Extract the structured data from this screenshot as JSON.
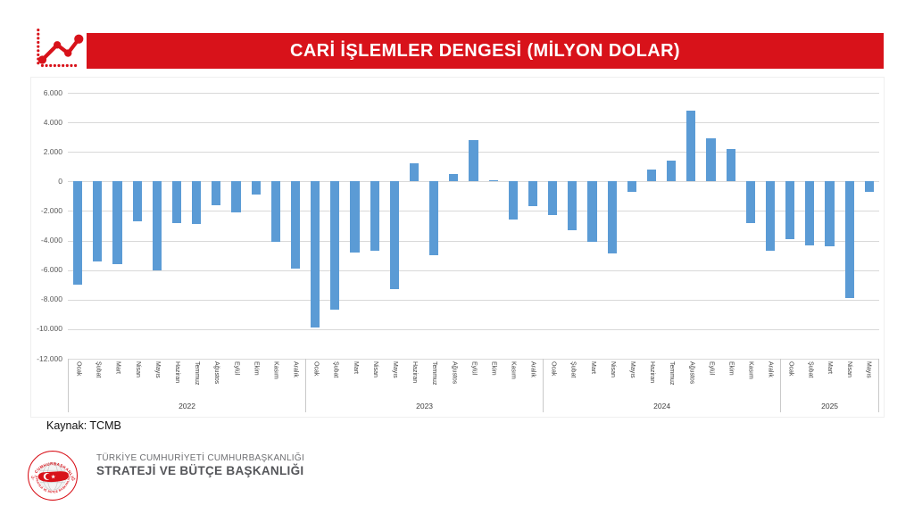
{
  "header": {
    "title": "CARİ İŞLEMLER DENGESİ (MİLYON DOLAR)",
    "banner_color": "#D8121A",
    "icon": "line-chart-icon"
  },
  "chart_data": {
    "type": "bar",
    "title": "CARİ İŞLEMLER DENGESİ (MİLYON DOLAR)",
    "xlabel": "",
    "ylabel": "",
    "unit": "milyon dolar",
    "bar_color": "#5B9BD5",
    "grid": true,
    "ylim": [
      -12000,
      6000
    ],
    "y_ticks": [
      {
        "label": "6.000",
        "value": 6000
      },
      {
        "label": "4.000",
        "value": 4000
      },
      {
        "label": "2.000",
        "value": 2000
      },
      {
        "label": "0",
        "value": 0
      },
      {
        "label": "-2.000",
        "value": -2000
      },
      {
        "label": "-4.000",
        "value": -4000
      },
      {
        "label": "-6.000",
        "value": -6000
      },
      {
        "label": "-8.000",
        "value": -8000
      },
      {
        "label": "-10.000",
        "value": -10000
      },
      {
        "label": "-12.000",
        "value": -12000
      }
    ],
    "groups": [
      {
        "year": "2022",
        "months": [
          "Ocak",
          "Şubat",
          "Mart",
          "Nisan",
          "Mayıs",
          "Haziran",
          "Temmuz",
          "Ağustos",
          "Eylül",
          "Ekim",
          "Kasım",
          "Aralık"
        ],
        "values": [
          -7000,
          -5400,
          -5600,
          -2700,
          -6000,
          -2800,
          -2900,
          -1600,
          -2100,
          -900,
          -4100,
          -5900
        ]
      },
      {
        "year": "2023",
        "months": [
          "Ocak",
          "Şubat",
          "Mart",
          "Nisan",
          "Mayıs",
          "Haziran",
          "Temmuz",
          "Ağustos",
          "Eylül",
          "Ekim",
          "Kasım",
          "Aralık"
        ],
        "values": [
          -9900,
          -8700,
          -4800,
          -4700,
          -7300,
          1200,
          -5000,
          500,
          2800,
          100,
          -2600,
          -1700
        ]
      },
      {
        "year": "2024",
        "months": [
          "Ocak",
          "Şubat",
          "Mart",
          "Nisan",
          "Mayıs",
          "Haziran",
          "Temmuz",
          "Ağustos",
          "Eylül",
          "Ekim",
          "Kasım",
          "Aralık"
        ],
        "values": [
          -2300,
          -3300,
          -4100,
          -4900,
          -700,
          800,
          1400,
          4800,
          2900,
          2200,
          -2800,
          -4700
        ]
      },
      {
        "year": "2025",
        "months": [
          "Ocak",
          "Şubat",
          "Mart",
          "Nisan",
          "Mayıs"
        ],
        "values": [
          -3900,
          -4300,
          -4400,
          -7900,
          -700
        ]
      }
    ]
  },
  "source": {
    "label": "Kaynak: TCMB"
  },
  "footer": {
    "org_line1": "TÜRKİYE CUMHURİYETİ CUMHURBAŞKANLIĞI",
    "org_line2": "STRATEJİ VE BÜTÇE BAŞKANLIĞI",
    "seal_top": "T.C. CUMHURBAŞKANLIĞI",
    "seal_bottom": "STRATEJİ VE BÜTÇE BAŞKANLIĞI"
  }
}
